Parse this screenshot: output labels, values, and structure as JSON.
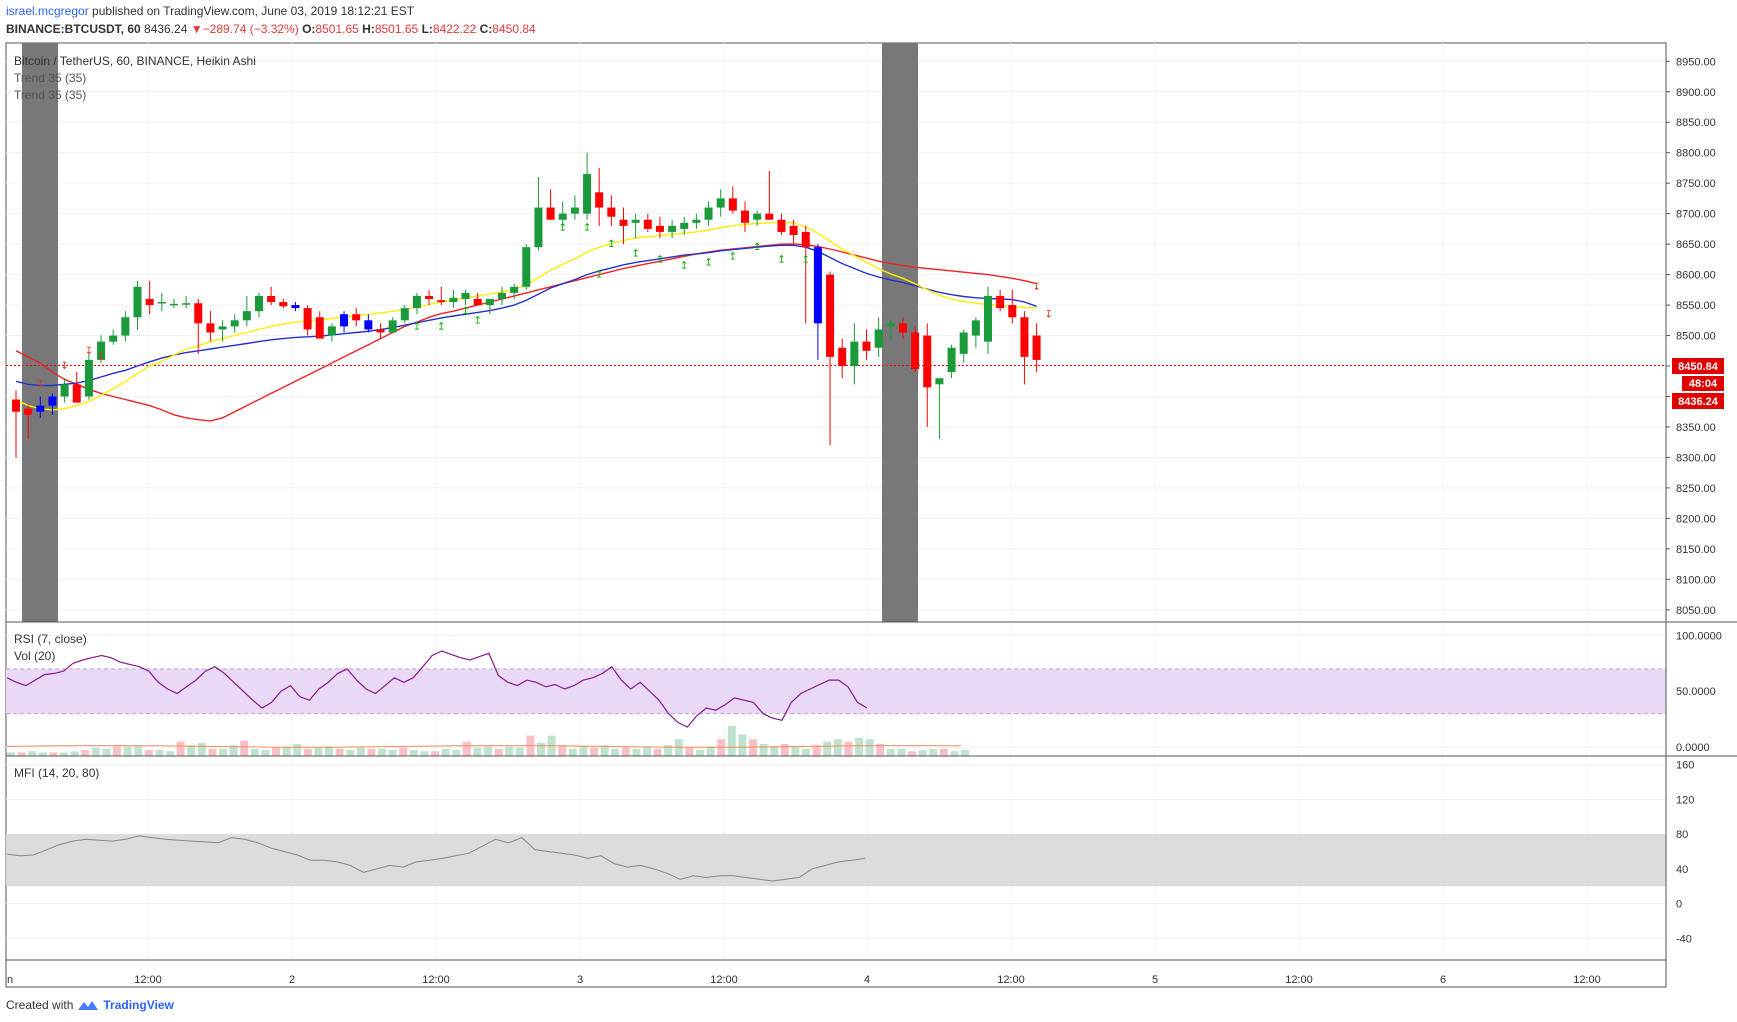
{
  "header": {
    "user": "israel.mcgregor",
    "published": "published on TradingView.com, June 03, 2019 18:12:21 EST",
    "symbol": "BINANCE:BTCUSDT, 60",
    "last": "8436.24",
    "change": "−289.74 (−3.32%)",
    "o_label": "O:",
    "o_val": "8501.65",
    "h_label": "H:",
    "h_val": "8501.65",
    "l_label": "L:",
    "l_val": "8422.22",
    "c_label": "C:",
    "c_val": "8450.84"
  },
  "footer": {
    "created": "Created with",
    "brand": "TradingView"
  },
  "colors": {
    "up": "#1a9a3a",
    "down": "#ff0000",
    "blueBar": "#0000ff",
    "ema_fast": "#ffee00",
    "ema_mid": "#2233cc",
    "ema_slow": "#ee2222",
    "rsi": "#8b1a8b",
    "band": "#ead8f7",
    "mfi_band": "#dcdcdc",
    "session": "#787878"
  },
  "chart_data": [
    {
      "type": "candlestick",
      "title": "Bitcoin / TetherUS, 60, BINANCE, Heikin Ashi",
      "legend": [
        "Trend 35 (35)",
        "Trend 35 (35)"
      ],
      "ylim": [
        8030,
        8980
      ],
      "yticks": [
        "8950.00",
        "8900.00",
        "8850.00",
        "8800.00",
        "8750.00",
        "8700.00",
        "8650.00",
        "8600.00",
        "8550.00",
        "8500.00",
        "8450.00",
        "8400.00",
        "8350.00",
        "8300.00",
        "8250.00",
        "8200.00",
        "8150.00",
        "8100.00",
        "8050.00"
      ],
      "price_labels": [
        "8450.84",
        "48:04",
        "8436.24"
      ],
      "last_price_line": 8450.84,
      "candles": [
        [
          8395,
          8410,
          8300,
          8375
        ],
        [
          8380,
          8385,
          8330,
          8370
        ],
        [
          8375,
          8400,
          8365,
          8385
        ],
        [
          8385,
          8405,
          8370,
          8400
        ],
        [
          8400,
          8430,
          8390,
          8420
        ],
        [
          8420,
          8440,
          8395,
          8390
        ],
        [
          8400,
          8470,
          8395,
          8460
        ],
        [
          8460,
          8500,
          8455,
          8490
        ],
        [
          8490,
          8510,
          8485,
          8500
        ],
        [
          8500,
          8540,
          8490,
          8530
        ],
        [
          8530,
          8590,
          8510,
          8580
        ],
        [
          8560,
          8590,
          8535,
          8550
        ],
        [
          8555,
          8570,
          8540,
          8555
        ],
        [
          8550,
          8560,
          8545,
          8552
        ],
        [
          8553,
          8565,
          8545,
          8553
        ],
        [
          8553,
          8560,
          8470,
          8520
        ],
        [
          8520,
          8540,
          8490,
          8505
        ],
        [
          8510,
          8525,
          8490,
          8515
        ],
        [
          8515,
          8535,
          8505,
          8525
        ],
        [
          8525,
          8565,
          8515,
          8540
        ],
        [
          8540,
          8570,
          8530,
          8565
        ],
        [
          8565,
          8580,
          8550,
          8555
        ],
        [
          8555,
          8560,
          8545,
          8548
        ],
        [
          8550,
          8555,
          8540,
          8545
        ],
        [
          8545,
          8550,
          8500,
          8510
        ],
        [
          8530,
          8540,
          8495,
          8495
        ],
        [
          8500,
          8520,
          8490,
          8515
        ],
        [
          8515,
          8540,
          8505,
          8535
        ],
        [
          8535,
          8545,
          8515,
          8525
        ],
        [
          8525,
          8535,
          8505,
          8510
        ],
        [
          8510,
          8520,
          8495,
          8505
        ],
        [
          8505,
          8530,
          8505,
          8525
        ],
        [
          8525,
          8550,
          8520,
          8545
        ],
        [
          8545,
          8570,
          8535,
          8565
        ],
        [
          8565,
          8575,
          8550,
          8560
        ],
        [
          8558,
          8580,
          8550,
          8555
        ],
        [
          8555,
          8575,
          8545,
          8562
        ],
        [
          8560,
          8575,
          8550,
          8570
        ],
        [
          8560,
          8570,
          8550,
          8550
        ],
        [
          8550,
          8560,
          8535,
          8560
        ],
        [
          8560,
          8580,
          8550,
          8570
        ],
        [
          8570,
          8585,
          8560,
          8580
        ],
        [
          8580,
          8650,
          8575,
          8645
        ],
        [
          8645,
          8760,
          8640,
          8710
        ],
        [
          8710,
          8740,
          8690,
          8690
        ],
        [
          8690,
          8720,
          8680,
          8700
        ],
        [
          8700,
          8730,
          8690,
          8710
        ],
        [
          8700,
          8800,
          8690,
          8765
        ],
        [
          8735,
          8775,
          8680,
          8710
        ],
        [
          8710,
          8730,
          8680,
          8695
        ],
        [
          8690,
          8710,
          8650,
          8680
        ],
        [
          8685,
          8700,
          8660,
          8690
        ],
        [
          8690,
          8700,
          8670,
          8675
        ],
        [
          8680,
          8695,
          8660,
          8670
        ],
        [
          8670,
          8690,
          8660,
          8680
        ],
        [
          8675,
          8695,
          8665,
          8685
        ],
        [
          8685,
          8700,
          8675,
          8690
        ],
        [
          8690,
          8720,
          8680,
          8710
        ],
        [
          8710,
          8740,
          8695,
          8725
        ],
        [
          8725,
          8745,
          8700,
          8705
        ],
        [
          8705,
          8720,
          8670,
          8685
        ],
        [
          8690,
          8705,
          8680,
          8700
        ],
        [
          8700,
          8770,
          8690,
          8690
        ],
        [
          8690,
          8700,
          8665,
          8670
        ],
        [
          8680,
          8690,
          8650,
          8665
        ],
        [
          8670,
          8680,
          8520,
          8645
        ],
        [
          8645,
          8650,
          8460,
          8520
        ],
        [
          8600,
          8605,
          8320,
          8465
        ],
        [
          8480,
          8495,
          8430,
          8450
        ],
        [
          8450,
          8520,
          8420,
          8490
        ],
        [
          8490,
          8510,
          8460,
          8475
        ],
        [
          8480,
          8530,
          8465,
          8510
        ],
        [
          8515,
          8525,
          8490,
          8520
        ],
        [
          8520,
          8530,
          8495,
          8505
        ],
        [
          8505,
          8515,
          8440,
          8445
        ],
        [
          8500,
          8520,
          8350,
          8415
        ],
        [
          8420,
          8425,
          8330,
          8430
        ],
        [
          8440,
          8485,
          8430,
          8480
        ],
        [
          8470,
          8510,
          8455,
          8505
        ],
        [
          8500,
          8530,
          8480,
          8525
        ],
        [
          8490,
          8580,
          8470,
          8565
        ],
        [
          8565,
          8575,
          8540,
          8545
        ],
        [
          8550,
          8575,
          8520,
          8530
        ],
        [
          8530,
          8540,
          8420,
          8465
        ],
        [
          8500,
          8520,
          8440,
          8460
        ]
      ],
      "bar_colors": {
        "blue": [
          2,
          3,
          23,
          27,
          29,
          66
        ]
      },
      "ema_fast": [
        8395,
        8385,
        8380,
        8378,
        8380,
        8385,
        8392,
        8402,
        8413,
        8425,
        8438,
        8450,
        8458,
        8468,
        8478,
        8483,
        8490,
        8495,
        8500,
        8505,
        8510,
        8515,
        8519,
        8522,
        8524,
        8526,
        8528,
        8531,
        8533,
        8535,
        8537,
        8540,
        8543,
        8547,
        8551,
        8555,
        8558,
        8562,
        8565,
        8568,
        8572,
        8576,
        8583,
        8595,
        8607,
        8617,
        8626,
        8637,
        8645,
        8651,
        8656,
        8660,
        8662,
        8664,
        8666,
        8668,
        8670,
        8673,
        8677,
        8680,
        8682,
        8684,
        8685,
        8686,
        8685,
        8678,
        8668,
        8655,
        8642,
        8631,
        8620,
        8610,
        8601,
        8594,
        8585,
        8575,
        8566,
        8560,
        8556,
        8553,
        8551,
        8549,
        8548,
        8546,
        8545
      ],
      "ema_mid": [
        8425,
        8420,
        8418,
        8418,
        8420,
        8422,
        8426,
        8432,
        8438,
        8443,
        8450,
        8457,
        8463,
        8468,
        8472,
        8475,
        8478,
        8481,
        8484,
        8487,
        8490,
        8493,
        8495,
        8497,
        8498,
        8499,
        8501,
        8503,
        8505,
        8507,
        8510,
        8513,
        8517,
        8521,
        8525,
        8529,
        8532,
        8535,
        8538,
        8541,
        8545,
        8550,
        8558,
        8568,
        8578,
        8585,
        8592,
        8600,
        8606,
        8611,
        8616,
        8620,
        8623,
        8626,
        8629,
        8632,
        8634,
        8636,
        8639,
        8641,
        8643,
        8645,
        8647,
        8648,
        8648,
        8645,
        8638,
        8628,
        8618,
        8610,
        8602,
        8596,
        8591,
        8587,
        8582,
        8576,
        8571,
        8567,
        8564,
        8562,
        8561,
        8560,
        8559,
        8555,
        8548
      ],
      "ema_slow": [
        8475,
        8465,
        8455,
        8440,
        8428,
        8420,
        8412,
        8405,
        8400,
        8395,
        8390,
        8385,
        8378,
        8370,
        8365,
        8362,
        8360,
        8365,
        8375,
        8385,
        8395,
        8405,
        8415,
        8425,
        8435,
        8445,
        8455,
        8465,
        8475,
        8485,
        8495,
        8505,
        8515,
        8522,
        8530,
        8536,
        8540,
        8545,
        8550,
        8555,
        8560,
        8565,
        8570,
        8575,
        8580,
        8585,
        8590,
        8595,
        8600,
        8605,
        8610,
        8614,
        8618,
        8622,
        8626,
        8630,
        8634,
        8637,
        8640,
        8642,
        8644,
        8646,
        8648,
        8650,
        8650,
        8649,
        8646,
        8642,
        8637,
        8632,
        8627,
        8622,
        8618,
        8615,
        8612,
        8610,
        8608,
        8606,
        8604,
        8602,
        8600,
        8597,
        8594,
        8590,
        8585
      ],
      "arrows_down": [
        {
          "i": 6,
          "p": 8470
        },
        {
          "i": 7,
          "p": 8460
        },
        {
          "i": 4,
          "p": 8445
        },
        {
          "i": 2,
          "p": 8415
        },
        {
          "i": 85,
          "p": 8530
        },
        {
          "i": 84,
          "p": 8575
        }
      ],
      "arrows_up": [
        {
          "i": 33,
          "p": 8510
        },
        {
          "i": 35,
          "p": 8510
        },
        {
          "i": 37,
          "p": 8535
        },
        {
          "i": 38,
          "p": 8520
        },
        {
          "i": 45,
          "p": 8672
        },
        {
          "i": 47,
          "p": 8672
        },
        {
          "i": 48,
          "p": 8595
        },
        {
          "i": 49,
          "p": 8645
        },
        {
          "i": 51,
          "p": 8630
        },
        {
          "i": 53,
          "p": 8620
        },
        {
          "i": 55,
          "p": 8610
        },
        {
          "i": 57,
          "p": 8615
        },
        {
          "i": 59,
          "p": 8625
        },
        {
          "i": 61,
          "p": 8640
        },
        {
          "i": 63,
          "p": 8620
        },
        {
          "i": 65,
          "p": 8620
        }
      ]
    },
    {
      "type": "line",
      "title": "RSI (7, close)",
      "legend2": "Vol (20)",
      "ylim": [
        -8,
        112
      ],
      "yticks": [
        "100.0000",
        "50.0000",
        "0.0000"
      ],
      "band": [
        30,
        70
      ],
      "rsi": [
        62,
        58,
        55,
        60,
        65,
        66,
        68,
        75,
        78,
        80,
        82,
        80,
        76,
        74,
        72,
        68,
        58,
        52,
        48,
        54,
        60,
        68,
        72,
        66,
        58,
        50,
        42,
        35,
        40,
        50,
        55,
        45,
        42,
        52,
        58,
        66,
        70,
        60,
        52,
        48,
        55,
        62,
        58,
        62,
        72,
        82,
        86,
        83,
        80,
        78,
        81,
        84,
        64,
        58,
        55,
        60,
        58,
        54,
        56,
        52,
        55,
        60,
        62,
        66,
        72,
        60,
        52,
        58,
        50,
        42,
        30,
        22,
        18,
        28,
        35,
        33,
        38,
        44,
        42,
        40,
        30,
        26,
        24,
        40,
        48,
        52,
        56,
        60,
        60,
        54,
        40,
        35
      ],
      "volume": [
        3,
        3,
        4,
        3,
        3,
        3,
        4,
        5,
        7,
        6,
        8,
        8,
        9,
        5,
        5,
        4,
        12,
        9,
        11,
        6,
        6,
        9,
        13,
        6,
        5,
        7,
        8,
        10,
        6,
        7,
        8,
        6,
        5,
        7,
        6,
        6,
        5,
        7,
        5,
        4,
        4,
        6,
        5,
        12,
        7,
        8,
        6,
        8,
        7,
        17,
        11,
        17,
        9,
        6,
        8,
        7,
        9,
        6,
        7,
        6,
        8,
        6,
        9,
        14,
        7,
        5,
        8,
        14,
        25,
        18,
        14,
        10,
        8,
        10,
        8,
        6,
        9,
        12,
        14,
        12,
        15,
        14,
        10,
        6,
        6,
        4,
        5,
        6,
        6,
        4,
        5
      ]
    },
    {
      "type": "line",
      "title": "MFI (14, 20, 80)",
      "ylim": [
        -65,
        170
      ],
      "yticks": [
        "160",
        "120",
        "80",
        "40",
        "0",
        "-40"
      ],
      "band": [
        20,
        80
      ],
      "mfi": [
        57,
        55,
        56,
        62,
        68,
        72,
        74,
        73,
        72,
        74,
        78,
        76,
        74,
        73,
        72,
        71,
        70,
        76,
        74,
        70,
        64,
        60,
        56,
        50,
        50,
        48,
        44,
        36,
        40,
        44,
        42,
        48,
        50,
        52,
        55,
        58,
        66,
        74,
        70,
        76,
        62,
        60,
        58,
        56,
        52,
        55,
        46,
        42,
        44,
        40,
        35,
        28,
        32,
        30,
        32,
        32,
        30,
        28,
        26,
        28,
        30,
        40,
        44,
        48,
        50,
        52
      ]
    },
    {
      "type": "axis",
      "xticks": [
        "n",
        "12:00",
        "2",
        "12:00",
        "3",
        "12:00",
        "4",
        "12:00",
        "5",
        "12:00",
        "6",
        "12:00"
      ]
    }
  ]
}
